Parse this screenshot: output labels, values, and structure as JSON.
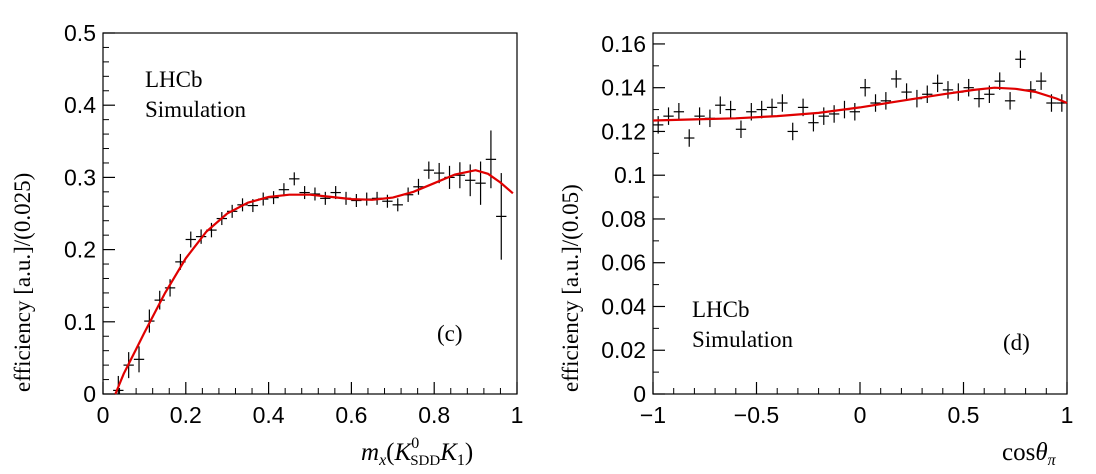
{
  "chart_data": [
    {
      "id": "c",
      "type": "scatter",
      "panel_label": "(c)",
      "annotation": [
        "LHCb",
        "Simulation"
      ],
      "ylabel": "efficiency [a.u.]/(0.025)",
      "xlabel": {
        "italic_m": "m",
        "sub_x": "x",
        "open": "(",
        "K": "K",
        "sup0": "0",
        "subSDD": "SDD",
        "K2": "K",
        "sub1": "1",
        "close": ")"
      },
      "xlim": [
        0,
        1
      ],
      "ylim": [
        0,
        0.5
      ],
      "x_ticks": [
        0,
        0.2,
        0.4,
        0.6,
        0.8,
        1
      ],
      "x_tick_labels": [
        "0",
        "0.2",
        "0.4",
        "0.6",
        "0.8",
        "1"
      ],
      "y_ticks": [
        0,
        0.1,
        0.2,
        0.3,
        0.4,
        0.5
      ],
      "y_tick_labels": [
        "0",
        "0.1",
        "0.2",
        "0.3",
        "0.4",
        "0.5"
      ],
      "data_points": [
        {
          "x": 0.037,
          "y": 0.005,
          "err": 0.02
        },
        {
          "x": 0.062,
          "y": 0.04,
          "err": 0.018
        },
        {
          "x": 0.087,
          "y": 0.048,
          "err": 0.018
        },
        {
          "x": 0.112,
          "y": 0.101,
          "err": 0.016
        },
        {
          "x": 0.137,
          "y": 0.13,
          "err": 0.013
        },
        {
          "x": 0.162,
          "y": 0.147,
          "err": 0.012
        },
        {
          "x": 0.187,
          "y": 0.183,
          "err": 0.011
        },
        {
          "x": 0.212,
          "y": 0.214,
          "err": 0.011
        },
        {
          "x": 0.237,
          "y": 0.218,
          "err": 0.01
        },
        {
          "x": 0.262,
          "y": 0.227,
          "err": 0.01
        },
        {
          "x": 0.287,
          "y": 0.243,
          "err": 0.009
        },
        {
          "x": 0.312,
          "y": 0.253,
          "err": 0.009
        },
        {
          "x": 0.337,
          "y": 0.262,
          "err": 0.009
        },
        {
          "x": 0.362,
          "y": 0.261,
          "err": 0.009
        },
        {
          "x": 0.387,
          "y": 0.27,
          "err": 0.009
        },
        {
          "x": 0.412,
          "y": 0.272,
          "err": 0.009
        },
        {
          "x": 0.437,
          "y": 0.283,
          "err": 0.009
        },
        {
          "x": 0.462,
          "y": 0.298,
          "err": 0.009
        },
        {
          "x": 0.487,
          "y": 0.279,
          "err": 0.009
        },
        {
          "x": 0.512,
          "y": 0.277,
          "err": 0.009
        },
        {
          "x": 0.537,
          "y": 0.271,
          "err": 0.009
        },
        {
          "x": 0.562,
          "y": 0.279,
          "err": 0.009
        },
        {
          "x": 0.587,
          "y": 0.271,
          "err": 0.009
        },
        {
          "x": 0.612,
          "y": 0.268,
          "err": 0.009
        },
        {
          "x": 0.637,
          "y": 0.27,
          "err": 0.009
        },
        {
          "x": 0.662,
          "y": 0.271,
          "err": 0.009
        },
        {
          "x": 0.687,
          "y": 0.267,
          "err": 0.009
        },
        {
          "x": 0.712,
          "y": 0.262,
          "err": 0.009
        },
        {
          "x": 0.737,
          "y": 0.276,
          "err": 0.01
        },
        {
          "x": 0.762,
          "y": 0.287,
          "err": 0.011
        },
        {
          "x": 0.787,
          "y": 0.31,
          "err": 0.012
        },
        {
          "x": 0.812,
          "y": 0.306,
          "err": 0.014
        },
        {
          "x": 0.837,
          "y": 0.3,
          "err": 0.016
        },
        {
          "x": 0.862,
          "y": 0.303,
          "err": 0.018
        },
        {
          "x": 0.887,
          "y": 0.296,
          "err": 0.022
        },
        {
          "x": 0.912,
          "y": 0.292,
          "err": 0.03
        },
        {
          "x": 0.937,
          "y": 0.325,
          "err": 0.04
        },
        {
          "x": 0.962,
          "y": 0.246,
          "err": 0.06
        }
      ],
      "fit_curve": [
        [
          0.03,
          0.0
        ],
        [
          0.05,
          0.028
        ],
        [
          0.08,
          0.062
        ],
        [
          0.1,
          0.085
        ],
        [
          0.15,
          0.14
        ],
        [
          0.2,
          0.188
        ],
        [
          0.25,
          0.225
        ],
        [
          0.3,
          0.25
        ],
        [
          0.35,
          0.265
        ],
        [
          0.4,
          0.273
        ],
        [
          0.45,
          0.276
        ],
        [
          0.5,
          0.276
        ],
        [
          0.55,
          0.273
        ],
        [
          0.6,
          0.27
        ],
        [
          0.65,
          0.269
        ],
        [
          0.7,
          0.272
        ],
        [
          0.75,
          0.28
        ],
        [
          0.8,
          0.292
        ],
        [
          0.85,
          0.304
        ],
        [
          0.9,
          0.31
        ],
        [
          0.93,
          0.305
        ],
        [
          0.96,
          0.293
        ],
        [
          0.99,
          0.278
        ]
      ],
      "fit_color": "#e00000"
    },
    {
      "id": "d",
      "type": "scatter",
      "panel_label": "(d)",
      "annotation": [
        "LHCb",
        "Simulation"
      ],
      "ylabel": "efficiency [a.u.]/(0.05)",
      "xlabel": {
        "cos": "cos",
        "theta": "θ",
        "pi": "π"
      },
      "xlim": [
        -1,
        1
      ],
      "ylim": [
        0,
        0.165
      ],
      "x_ticks": [
        -1,
        -0.5,
        0,
        0.5,
        1
      ],
      "x_tick_labels": [
        "−1",
        "−0.5",
        "0",
        "0.5",
        "1"
      ],
      "y_ticks": [
        0,
        0.02,
        0.04,
        0.06,
        0.08,
        0.1,
        0.12,
        0.14,
        0.16
      ],
      "y_tick_labels": [
        "0",
        "0.02",
        "0.04",
        "0.06",
        "0.08",
        "0.1",
        "0.12",
        "0.14",
        "0.16"
      ],
      "data_points": [
        {
          "x": -0.975,
          "y": 0.123,
          "err": 0.004
        },
        {
          "x": -0.925,
          "y": 0.127,
          "err": 0.004
        },
        {
          "x": -0.875,
          "y": 0.129,
          "err": 0.004
        },
        {
          "x": -0.825,
          "y": 0.117,
          "err": 0.004
        },
        {
          "x": -0.775,
          "y": 0.127,
          "err": 0.004
        },
        {
          "x": -0.725,
          "y": 0.126,
          "err": 0.004
        },
        {
          "x": -0.675,
          "y": 0.132,
          "err": 0.004
        },
        {
          "x": -0.625,
          "y": 0.13,
          "err": 0.004
        },
        {
          "x": -0.575,
          "y": 0.121,
          "err": 0.004
        },
        {
          "x": -0.525,
          "y": 0.129,
          "err": 0.004
        },
        {
          "x": -0.475,
          "y": 0.13,
          "err": 0.004
        },
        {
          "x": -0.425,
          "y": 0.131,
          "err": 0.004
        },
        {
          "x": -0.375,
          "y": 0.133,
          "err": 0.004
        },
        {
          "x": -0.325,
          "y": 0.12,
          "err": 0.004
        },
        {
          "x": -0.275,
          "y": 0.131,
          "err": 0.004
        },
        {
          "x": -0.225,
          "y": 0.124,
          "err": 0.004
        },
        {
          "x": -0.175,
          "y": 0.127,
          "err": 0.004
        },
        {
          "x": -0.125,
          "y": 0.128,
          "err": 0.004
        },
        {
          "x": -0.075,
          "y": 0.13,
          "err": 0.004
        },
        {
          "x": -0.025,
          "y": 0.129,
          "err": 0.004
        },
        {
          "x": 0.025,
          "y": 0.14,
          "err": 0.004
        },
        {
          "x": 0.075,
          "y": 0.133,
          "err": 0.004
        },
        {
          "x": 0.125,
          "y": 0.134,
          "err": 0.004
        },
        {
          "x": 0.175,
          "y": 0.144,
          "err": 0.004
        },
        {
          "x": 0.225,
          "y": 0.138,
          "err": 0.004
        },
        {
          "x": 0.275,
          "y": 0.135,
          "err": 0.004
        },
        {
          "x": 0.325,
          "y": 0.137,
          "err": 0.004
        },
        {
          "x": 0.375,
          "y": 0.142,
          "err": 0.004
        },
        {
          "x": 0.425,
          "y": 0.139,
          "err": 0.004
        },
        {
          "x": 0.475,
          "y": 0.138,
          "err": 0.004
        },
        {
          "x": 0.525,
          "y": 0.14,
          "err": 0.004
        },
        {
          "x": 0.575,
          "y": 0.135,
          "err": 0.004
        },
        {
          "x": 0.625,
          "y": 0.137,
          "err": 0.004
        },
        {
          "x": 0.675,
          "y": 0.143,
          "err": 0.004
        },
        {
          "x": 0.725,
          "y": 0.134,
          "err": 0.004
        },
        {
          "x": 0.775,
          "y": 0.153,
          "err": 0.004
        },
        {
          "x": 0.825,
          "y": 0.139,
          "err": 0.004
        },
        {
          "x": 0.875,
          "y": 0.143,
          "err": 0.004
        },
        {
          "x": 0.925,
          "y": 0.133,
          "err": 0.004
        },
        {
          "x": 0.975,
          "y": 0.133,
          "err": 0.004
        }
      ],
      "fit_curve": [
        [
          -1.0,
          0.125
        ],
        [
          -0.8,
          0.1255
        ],
        [
          -0.6,
          0.126
        ],
        [
          -0.4,
          0.127
        ],
        [
          -0.2,
          0.1285
        ],
        [
          0.0,
          0.131
        ],
        [
          0.2,
          0.134
        ],
        [
          0.4,
          0.137
        ],
        [
          0.55,
          0.139
        ],
        [
          0.65,
          0.14
        ],
        [
          0.75,
          0.1395
        ],
        [
          0.85,
          0.138
        ],
        [
          0.95,
          0.135
        ],
        [
          1.0,
          0.133
        ]
      ],
      "fit_color": "#e00000"
    }
  ]
}
